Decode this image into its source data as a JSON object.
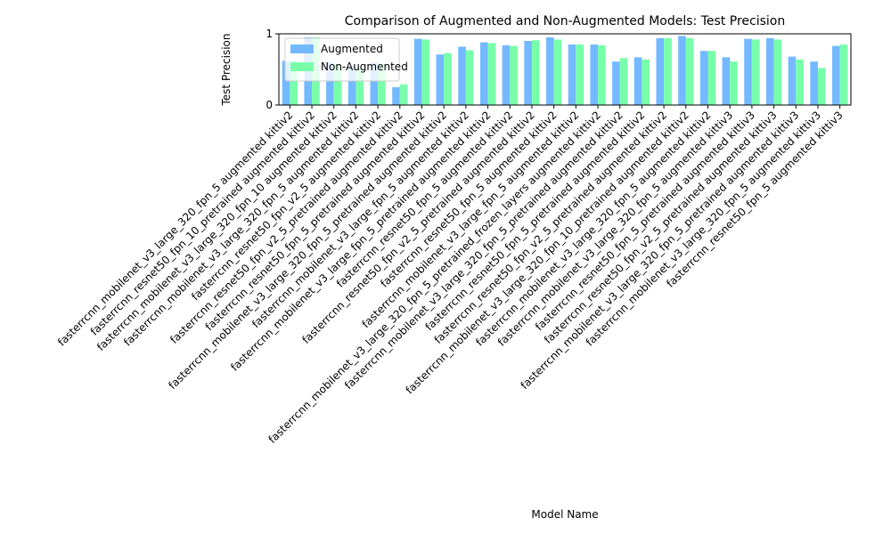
{
  "chart_data": {
    "type": "bar",
    "title": "Comparison of Augmented and Non-Augmented Models: Test Precision",
    "xlabel": "Model Name",
    "ylabel": "Test Precision",
    "categories": [
      "fasterrcnn_mobilenet_v3_large_320_fpn_5 augmented kittiv2",
      "fasterrcnn_resnet50_fpn_10_pretrained augmented kittiv2",
      "fasterrcnn_mobilenet_v3_large_320_fpn_10 augmented kittiv2",
      "fasterrcnn_mobilenet_v3_large_320_fpn_5 augmented kittiv2",
      "fasterrcnn_resnet50_fpn_v2_5 augmented kittiv2",
      "fasterrcnn_resnet50_fpn_v2_5_pretrained augmented kittiv2",
      "fasterrcnn_resnet50_fpn_5_pretrained augmented kittiv2",
      "fasterrcnn_mobilenet_v3_large_320_fpn_5_pretrained augmented kittiv2",
      "fasterrcnn_mobilenet_v3_large_fpn_5 augmented kittiv2",
      "fasterrcnn_mobilenet_v3_large_fpn_5_pretrained augmented kittiv2",
      "fasterrcnn_resnet50_fpn_5 augmented kittiv2",
      "fasterrcnn_resnet50_fpn_v2_5_pretrained augmented kittiv2",
      "fasterrcnn_resnet50_fpn_5 augmented kittiv2",
      "fasterrcnn_mobilenet_v3_large_fpn_5 augmented kittiv2",
      "fasterrcnn_mobilenet_v3_large_320_fpn_5_pretrained_frozen_layers augmented kittiv2",
      "fasterrcnn_mobilenet_v3_large_320_fpn_5_pretrained augmented kittiv2",
      "fasterrcnn_resnet50_fpn_5_pretrained augmented kittiv2",
      "fasterrcnn_resnet50_fpn_v2_5_pretrained augmented kittiv2",
      "fasterrcnn_mobilenet_v3_large_320_fpn_10_pretrained augmented kittiv2",
      "fasterrcnn_mobilenet_v3_large_320_fpn_5 augmented kittiv2",
      "fasterrcnn_mobilenet_v3_large_320_fpn_5 augmented kittiv3",
      "fasterrcnn_resnet50_fpn_5_pretrained augmented kittiv3",
      "fasterrcnn_resnet50_fpn_v2_5_pretrained augmented kittiv3",
      "fasterrcnn_mobilenet_v3_large_320_fpn_5_pretrained augmented kittiv3",
      "fasterrcnn_mobilenet_v3_large_320_fpn_5 augmented kittiv3",
      "fasterrcnn_resnet50_fpn_5 augmented kittiv3"
    ],
    "series": [
      {
        "name": "Augmented",
        "color": "#74b9ff",
        "values": [
          0.62,
          0.95,
          0.6,
          0.55,
          0.6,
          0.25,
          0.93,
          0.71,
          0.82,
          0.88,
          0.84,
          0.9,
          0.95,
          0.85,
          0.85,
          0.61,
          0.67,
          0.94,
          0.97,
          0.76,
          0.67,
          0.93,
          0.94,
          0.68,
          0.61,
          0.83
        ]
      },
      {
        "name": "Non-Augmented",
        "color": "#77ffaa",
        "values": [
          0.62,
          0.95,
          0.58,
          0.53,
          0.58,
          0.29,
          0.92,
          0.73,
          0.77,
          0.87,
          0.83,
          0.91,
          0.92,
          0.85,
          0.84,
          0.66,
          0.64,
          0.94,
          0.94,
          0.76,
          0.61,
          0.92,
          0.92,
          0.64,
          0.52,
          0.85
        ]
      }
    ],
    "ylim": [
      0,
      1
    ],
    "yticks": [
      0,
      1
    ],
    "legend": "upper left"
  }
}
